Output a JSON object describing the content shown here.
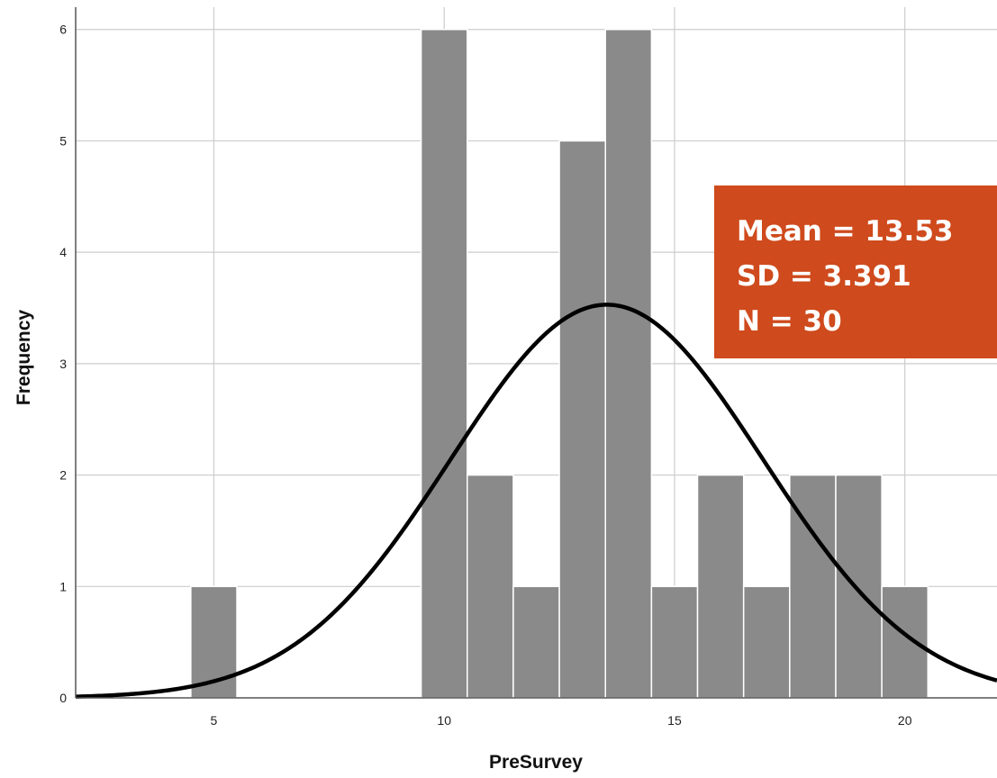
{
  "chart_data": {
    "type": "bar",
    "title": "",
    "xlabel": "PreSurvey",
    "ylabel": "Frequency",
    "xlim": [
      2,
      22
    ],
    "ylim": [
      0,
      6.2
    ],
    "x_ticks": [
      5,
      10,
      15,
      20
    ],
    "y_ticks": [
      0,
      1,
      2,
      3,
      4,
      5,
      6
    ],
    "grid": true,
    "bin_width": 1,
    "bins": [
      {
        "center": 5,
        "count": 1
      },
      {
        "center": 10,
        "count": 6
      },
      {
        "center": 11,
        "count": 2
      },
      {
        "center": 12,
        "count": 1
      },
      {
        "center": 13,
        "count": 5
      },
      {
        "center": 14,
        "count": 6
      },
      {
        "center": 15,
        "count": 1
      },
      {
        "center": 16,
        "count": 2
      },
      {
        "center": 17,
        "count": 1
      },
      {
        "center": 18,
        "count": 2
      },
      {
        "center": 19,
        "count": 2
      },
      {
        "center": 20,
        "count": 1
      }
    ],
    "normal_curve": {
      "mean": 13.53,
      "sd": 3.391,
      "n": 30
    },
    "bar_color": "#8a8a8a",
    "curve_color": "#000000",
    "grid_color": "#cccccc"
  },
  "stats": {
    "mean_label": "Mean = 13.53",
    "sd_label": "SD = 3.391",
    "n_label": "N = 30",
    "box_color": "#cf4a1c"
  }
}
